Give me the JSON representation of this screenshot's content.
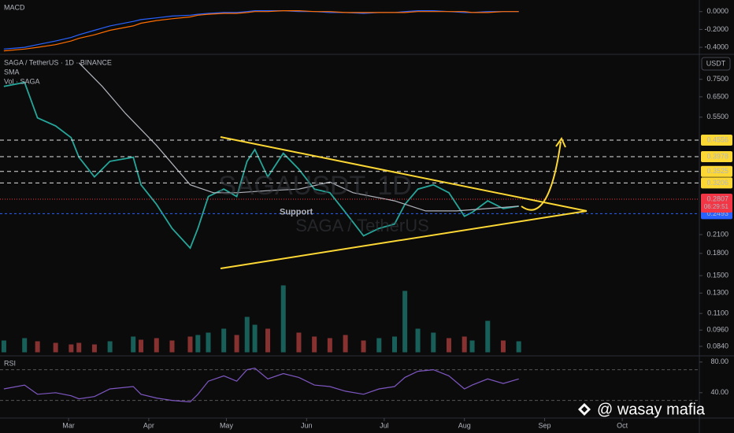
{
  "chart_data": [
    {
      "type": "line",
      "title": "SAGA / TetherUS · 1D · BINANCE",
      "unit": "USDT",
      "watermark": [
        "SAGAUSDT, 1D",
        "SAGA / TetherUS"
      ],
      "log_scale": true,
      "x": [
        36,
        44,
        49,
        56,
        62,
        65,
        71,
        77,
        86,
        89,
        95,
        101,
        108,
        111,
        115,
        121,
        126,
        130,
        133,
        138,
        144,
        150,
        156,
        162,
        168,
        175,
        181,
        187,
        191,
        196,
        202,
        208,
        214,
        217,
        223,
        229,
        235
      ],
      "xlim": [
        34.5,
        304.8
      ],
      "xticks": [
        {
          "value": 61,
          "label": "Mar"
        },
        {
          "value": 92,
          "label": "Apr"
        },
        {
          "value": 122,
          "label": "May"
        },
        {
          "value": 153,
          "label": "Jun"
        },
        {
          "value": 183,
          "label": "Jul"
        },
        {
          "value": 214,
          "label": "Aug"
        },
        {
          "value": 245,
          "label": "Sep"
        },
        {
          "value": 275,
          "label": "Oct"
        }
      ],
      "ylim": [
        0.08,
        0.88
      ],
      "yticks": [
        {
          "value": 0.75,
          "label": "0.7500"
        },
        {
          "value": 0.65,
          "label": "0.6500"
        },
        {
          "value": 0.55,
          "label": "0.5500"
        },
        {
          "value": 0.21,
          "label": "0.2100"
        },
        {
          "value": 0.18,
          "label": "0.1800"
        },
        {
          "value": 0.15,
          "label": "0.1500"
        },
        {
          "value": 0.13,
          "label": "0.1300"
        },
        {
          "value": 0.11,
          "label": "0.1100"
        },
        {
          "value": 0.096,
          "label": "0.0960"
        },
        {
          "value": 0.084,
          "label": "0.0840"
        }
      ],
      "series": [
        {
          "color": "#26a69a",
          "values": [
            0.708,
            0.731,
            0.547,
            0.512,
            0.465,
            0.396,
            0.337,
            0.383,
            0.396,
            0.316,
            0.269,
            0.221,
            0.188,
            0.221,
            0.287,
            0.305,
            0.287,
            0.383,
            0.422,
            0.337,
            0.409,
            0.359,
            0.305,
            0.296,
            0.252,
            0.208,
            0.221,
            0.229,
            0.269,
            0.305,
            0.316,
            0.296,
            0.244,
            0.252,
            0.277,
            0.26,
            0.265
          ]
        },
        {
          "name": "SMA",
          "color": "#b2b5be",
          "x": [
            65,
            74,
            83,
            95,
            108,
            117,
            126,
            138,
            150,
            162,
            171,
            187,
            199,
            211,
            223,
            235
          ],
          "values": [
            0.859,
            0.708,
            0.567,
            0.436,
            0.316,
            0.296,
            0.296,
            0.301,
            0.305,
            0.323,
            0.296,
            0.277,
            0.255,
            0.255,
            0.26,
            0.265
          ]
        }
      ],
      "volume": {
        "name": "Vol · SAGA",
        "up_color": "#26a69a",
        "down_color": "#ef5350",
        "values": [
          15,
          18,
          14,
          12,
          10,
          12,
          10,
          14,
          20,
          16,
          18,
          15,
          20,
          22,
          25,
          30,
          22,
          45,
          35,
          30,
          85,
          25,
          20,
          18,
          22,
          15,
          18,
          20,
          78,
          30,
          25,
          18,
          20,
          15,
          40,
          15,
          14
        ]
      },
      "levels": [
        {
          "value": 0.4556
        },
        {
          "value": 0.3978
        },
        {
          "value": 0.3525
        },
        {
          "value": 0.3206
        }
      ],
      "level_color": "#fdd835",
      "support": {
        "label": "Support",
        "value": 0.2493,
        "color": "#2962ff"
      },
      "last": {
        "value": 0.2807,
        "color": "#f23645",
        "countdown": "06:29:51"
      }
    },
    {
      "type": "line",
      "title": "RSI",
      "ylim": [
        8,
        85
      ],
      "yticks": [
        {
          "value": 80,
          "label": "80.00"
        },
        {
          "value": 40,
          "label": "40.00"
        }
      ],
      "bands": [
        70,
        30
      ],
      "series": [
        {
          "color": "#7e57c2",
          "values": [
            45,
            50,
            38,
            40,
            36,
            32,
            35,
            45,
            48,
            38,
            33,
            30,
            28,
            38,
            55,
            62,
            55,
            70,
            72,
            58,
            65,
            60,
            50,
            48,
            42,
            38,
            45,
            48,
            60,
            68,
            70,
            62,
            45,
            50,
            58,
            52,
            58
          ]
        }
      ]
    },
    {
      "type": "line",
      "title": "MACD",
      "ylim": [
        -0.47,
        0.13
      ],
      "yticks": [
        {
          "value": 0,
          "label": "0.0000"
        },
        {
          "value": -0.2,
          "label": "-0.2000"
        },
        {
          "value": -0.4,
          "label": "-0.4000"
        }
      ],
      "series": [
        {
          "color": "#2962ff",
          "values": [
            -0.42,
            -0.4,
            -0.37,
            -0.33,
            -0.29,
            -0.26,
            -0.21,
            -0.16,
            -0.11,
            -0.09,
            -0.07,
            -0.05,
            -0.04,
            -0.03,
            -0.02,
            -0.01,
            -0.01,
            0,
            0.01,
            0.01,
            0.01,
            0,
            0,
            -0.01,
            -0.01,
            -0.02,
            -0.01,
            -0.01,
            0,
            0.01,
            0.01,
            0,
            -0.01,
            -0.01,
            0,
            0,
            0
          ]
        },
        {
          "color": "#ff6d00",
          "values": [
            -0.44,
            -0.42,
            -0.4,
            -0.37,
            -0.33,
            -0.3,
            -0.26,
            -0.21,
            -0.16,
            -0.13,
            -0.1,
            -0.08,
            -0.06,
            -0.04,
            -0.03,
            -0.02,
            -0.02,
            -0.01,
            0,
            0,
            0.01,
            0.01,
            0,
            0,
            -0.01,
            -0.01,
            -0.01,
            -0.01,
            -0.01,
            0,
            0,
            0,
            0,
            -0.01,
            -0.01,
            0,
            0
          ]
        }
      ]
    }
  ],
  "credit": "@ wasay mafia"
}
